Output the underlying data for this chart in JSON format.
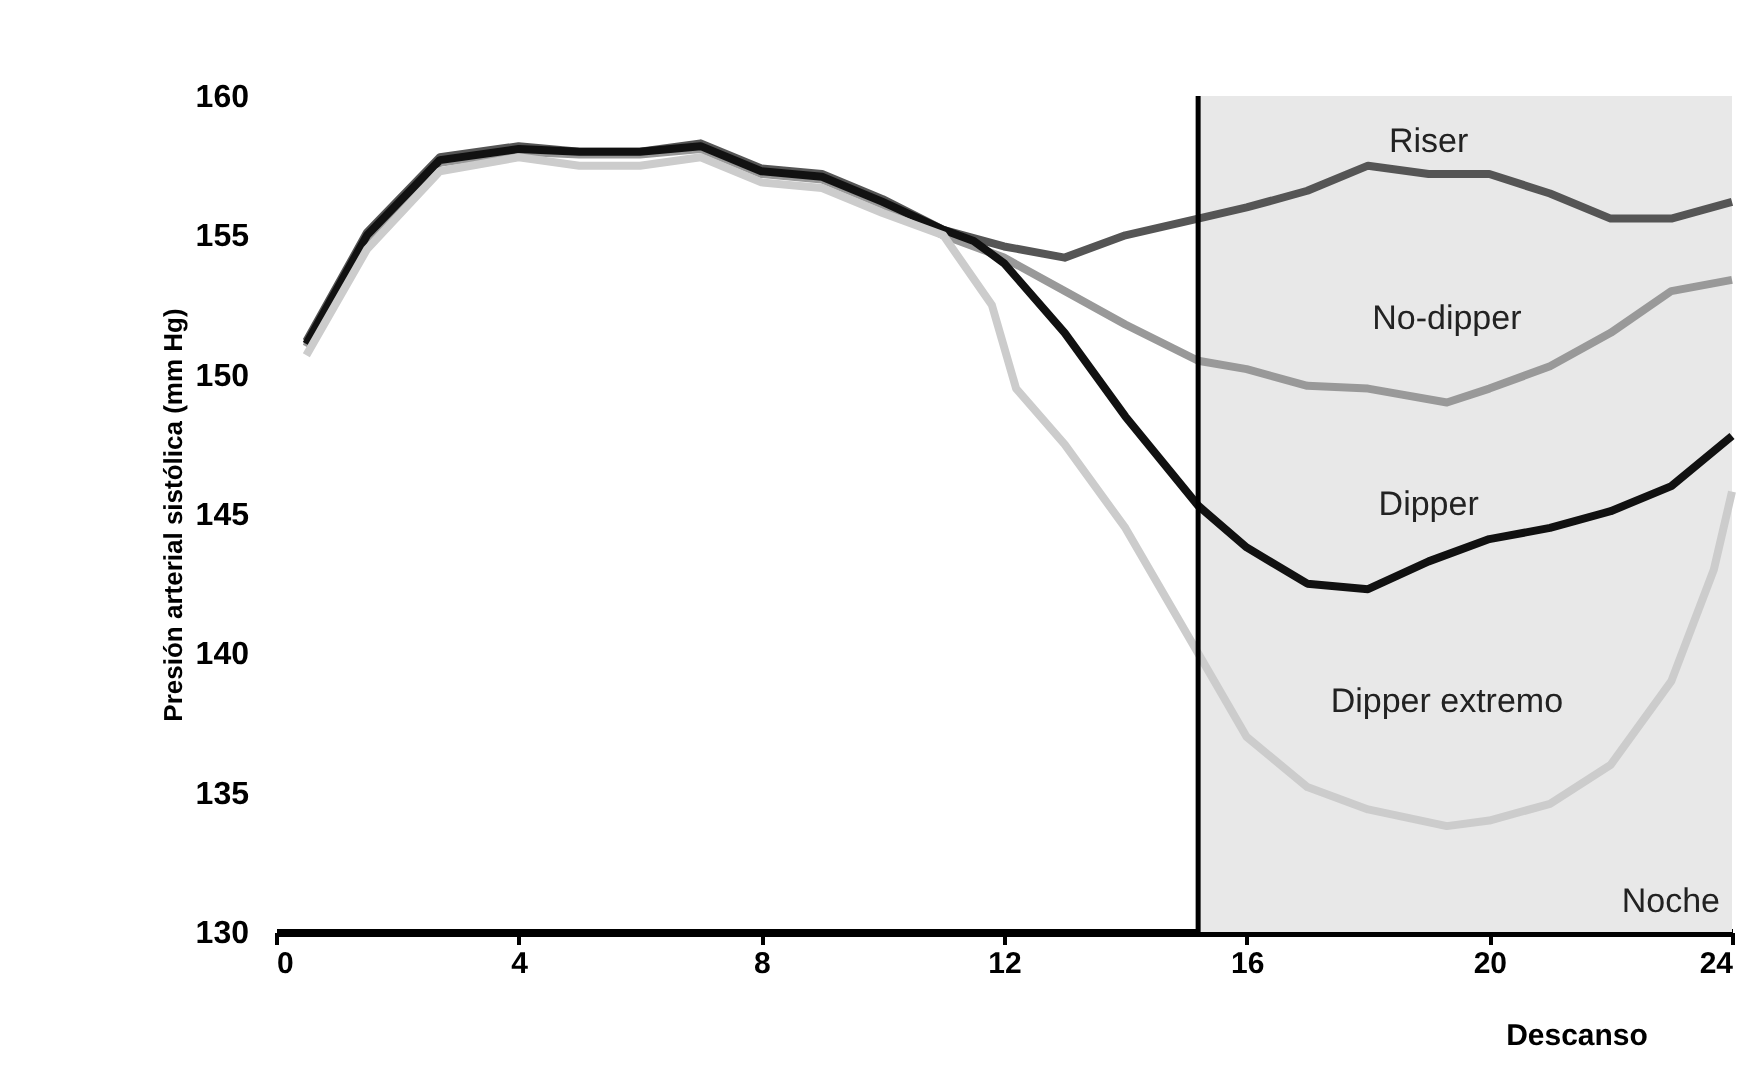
{
  "chart_data": {
    "type": "line",
    "xlabel": "Descanso",
    "ylabel": "Presión arterial sistólica (mm Hg)",
    "xlim": [
      0,
      24
    ],
    "xticks": [
      0,
      4,
      8,
      12,
      16,
      20,
      24
    ],
    "ylim": [
      130,
      160
    ],
    "yticks": [
      130,
      135,
      140,
      145,
      150,
      155,
      160
    ],
    "grid": false,
    "legend": false,
    "line_style": "solid",
    "marker": "none",
    "series": [
      {
        "name": "Riser",
        "color": "#555555",
        "x": [
          0.5,
          1.5,
          2.7,
          4,
          5,
          6,
          7,
          8,
          9,
          10,
          11,
          12,
          13,
          14,
          15.2,
          16,
          17,
          18,
          19,
          20,
          21,
          22,
          23,
          24
        ],
        "values": [
          151.2,
          155.1,
          157.8,
          158.2,
          158,
          158,
          158.3,
          157.4,
          157.2,
          156.3,
          155.2,
          154.6,
          154.2,
          155,
          155.6,
          156,
          156.6,
          157.5,
          157.2,
          157.2,
          156.5,
          155.6,
          155.6,
          156.2
        ]
      },
      {
        "name": "No-dipper",
        "color": "#999999",
        "x": [
          0.5,
          1.5,
          2.7,
          4,
          5,
          6,
          7,
          8,
          9,
          10,
          11,
          12,
          13,
          14,
          15.2,
          16,
          17,
          18,
          19.3,
          20,
          21,
          22,
          23,
          24
        ],
        "values": [
          151,
          154.9,
          157.6,
          158,
          157.9,
          157.9,
          158.1,
          157.2,
          157,
          156.1,
          155,
          154.2,
          153,
          151.8,
          150.5,
          150.2,
          149.6,
          149.5,
          149,
          149.5,
          150.3,
          151.5,
          153,
          153.4
        ]
      },
      {
        "name": "Dipper",
        "color": "#111111",
        "x": [
          0.5,
          1.5,
          2.7,
          4,
          5,
          6,
          7,
          8,
          9,
          10,
          11,
          11.5,
          12,
          13,
          14,
          15.2,
          16,
          17,
          18,
          19,
          20,
          21,
          22,
          23,
          24
        ],
        "values": [
          151.1,
          155,
          157.7,
          158.1,
          158,
          158,
          158.2,
          157.3,
          157.1,
          156.2,
          155.2,
          154.8,
          154,
          151.5,
          148.5,
          145.3,
          143.8,
          142.5,
          142.3,
          143.3,
          144.1,
          144.5,
          145.1,
          146,
          147.8
        ]
      },
      {
        "name": "Dipper extremo",
        "color": "#cccccc",
        "x": [
          0.5,
          1.5,
          2.7,
          4,
          5,
          6,
          7,
          8,
          9,
          10,
          11,
          11.8,
          12.2,
          13,
          14,
          15.2,
          16,
          17,
          18,
          19.3,
          20,
          21,
          22,
          23,
          23.7,
          24
        ],
        "values": [
          150.7,
          154.5,
          157.3,
          157.8,
          157.5,
          157.5,
          157.8,
          156.9,
          156.7,
          155.8,
          155,
          152.5,
          149.5,
          147.5,
          144.5,
          140,
          137,
          135.2,
          134.4,
          133.8,
          134,
          134.6,
          136,
          139,
          143,
          145.8
        ]
      }
    ],
    "ref_lines": [
      {
        "axis": "x",
        "value": 15.2,
        "color": "#000000",
        "line_style": "solid"
      }
    ],
    "bands": [
      {
        "axis": "x",
        "from": 15.2,
        "to": 24,
        "label": "Noche",
        "color": "#e8e8e8"
      }
    ]
  }
}
